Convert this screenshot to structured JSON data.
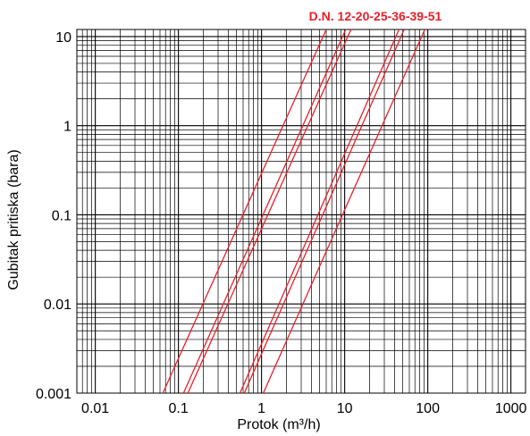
{
  "chart_data": {
    "type": "line",
    "x_scale": "log",
    "y_scale": "log",
    "xlim": [
      0.006,
      1500
    ],
    "ylim": [
      0.001,
      12
    ],
    "xlabel": "Protok (m³/h)",
    "ylabel": "Gubitak pritiska (bara)",
    "legend_title": "D.N. 12-20-25-36-39-51",
    "grid": true,
    "x_ticks": [
      {
        "value": 0.01,
        "label": "0.01"
      },
      {
        "value": 0.1,
        "label": "0.1"
      },
      {
        "value": 1,
        "label": "1"
      },
      {
        "value": 10,
        "label": "10"
      },
      {
        "value": 100,
        "label": "100"
      },
      {
        "value": 1000,
        "label": "1000"
      }
    ],
    "y_ticks": [
      {
        "value": 0.001,
        "label": "0.001"
      },
      {
        "value": 0.01,
        "label": "0.01"
      },
      {
        "value": 0.1,
        "label": "0.1"
      },
      {
        "value": 1,
        "label": "1"
      },
      {
        "value": 10,
        "label": "10"
      }
    ],
    "colors": {
      "series": "#e8202a",
      "grid": "#000000",
      "title": "#e8202a"
    },
    "series": [
      {
        "values": [
          {
            "x": 0.065,
            "y": 0.001
          },
          {
            "x": 6.0,
            "y": 12
          }
        ]
      },
      {
        "values": [
          {
            "x": 0.115,
            "y": 0.001
          },
          {
            "x": 10.3,
            "y": 12
          }
        ]
      },
      {
        "values": [
          {
            "x": 0.13,
            "y": 0.001
          },
          {
            "x": 11.9,
            "y": 12
          }
        ]
      },
      {
        "values": [
          {
            "x": 0.55,
            "y": 0.001
          },
          {
            "x": 45,
            "y": 12
          }
        ]
      },
      {
        "values": [
          {
            "x": 0.62,
            "y": 0.001
          },
          {
            "x": 52,
            "y": 12
          }
        ]
      },
      {
        "values": [
          {
            "x": 1.05,
            "y": 0.001
          },
          {
            "x": 92,
            "y": 12
          }
        ]
      }
    ]
  }
}
